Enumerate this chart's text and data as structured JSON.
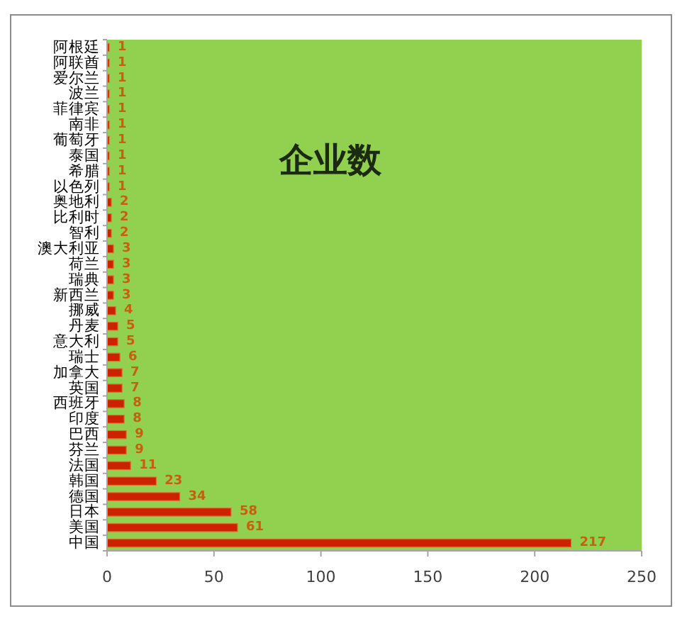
{
  "chart_data": {
    "type": "bar",
    "orientation": "horizontal",
    "title": "企业数",
    "categories": [
      "阿根廷",
      "阿联酋",
      "爱尔兰",
      "波兰",
      "菲律宾",
      "南非",
      "葡萄牙",
      "泰国",
      "希腊",
      "以色列",
      "奥地利",
      "比利时",
      "智利",
      "澳大利亚",
      "荷兰",
      "瑞典",
      "新西兰",
      "挪威",
      "丹麦",
      "意大利",
      "瑞士",
      "加拿大",
      "英国",
      "西班牙",
      "印度",
      "巴西",
      "芬兰",
      "法国",
      "韩国",
      "德国",
      "日本",
      "美国",
      "中国"
    ],
    "values": [
      1,
      1,
      1,
      1,
      1,
      1,
      1,
      1,
      1,
      1,
      2,
      2,
      2,
      3,
      3,
      3,
      3,
      4,
      5,
      5,
      6,
      7,
      7,
      8,
      8,
      9,
      9,
      11,
      23,
      34,
      58,
      61,
      217
    ],
    "color": "#cc2200",
    "xlim": [
      0,
      250
    ],
    "xticks": [
      0,
      50,
      100,
      150,
      200,
      250
    ],
    "data_labels": true,
    "grid": false
  }
}
